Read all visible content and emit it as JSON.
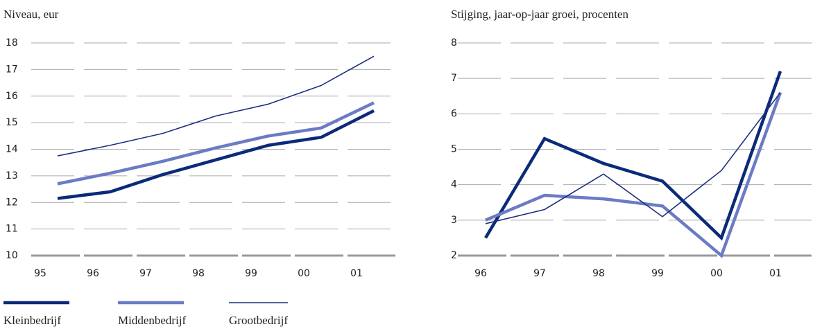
{
  "chart_data": [
    {
      "type": "line",
      "title": "Niveau, eur",
      "categories": [
        "95",
        "96",
        "97",
        "98",
        "99",
        "00",
        "01"
      ],
      "series": [
        {
          "name": "Kleinbedrijf",
          "color": "#0b2a7a",
          "values": [
            12.15,
            12.4,
            13.05,
            13.6,
            14.15,
            14.45,
            15.45
          ]
        },
        {
          "name": "Middenbedrijf",
          "color": "#6b7bc4",
          "values": [
            12.7,
            13.1,
            13.55,
            14.05,
            14.5,
            14.8,
            15.75
          ]
        },
        {
          "name": "Grootbedrijf",
          "color": "#1c2f80",
          "values": [
            13.75,
            14.15,
            14.6,
            15.25,
            15.7,
            16.4,
            17.5
          ]
        }
      ],
      "ylim": [
        10,
        18
      ],
      "yticks": [
        10,
        11,
        12,
        13,
        14,
        15,
        16,
        17,
        18
      ],
      "grid": true
    },
    {
      "type": "line",
      "title": "Stijging, jaar-op-jaar groei, procenten",
      "categories": [
        "96",
        "97",
        "98",
        "99",
        "00",
        "01"
      ],
      "series": [
        {
          "name": "Kleinbedrijf",
          "color": "#0b2a7a",
          "values": [
            2.5,
            5.3,
            4.6,
            4.1,
            2.5,
            7.2
          ]
        },
        {
          "name": "Middenbedrijf",
          "color": "#6b7bc4",
          "values": [
            3.0,
            3.7,
            3.6,
            3.4,
            2.0,
            6.6
          ]
        },
        {
          "name": "Grootbedrijf",
          "color": "#1c2f80",
          "values": [
            2.9,
            3.3,
            4.3,
            3.1,
            4.4,
            6.6
          ]
        }
      ],
      "ylim": [
        2,
        8
      ],
      "yticks": [
        2,
        3,
        4,
        5,
        6,
        7,
        8
      ],
      "grid": true
    }
  ]
}
